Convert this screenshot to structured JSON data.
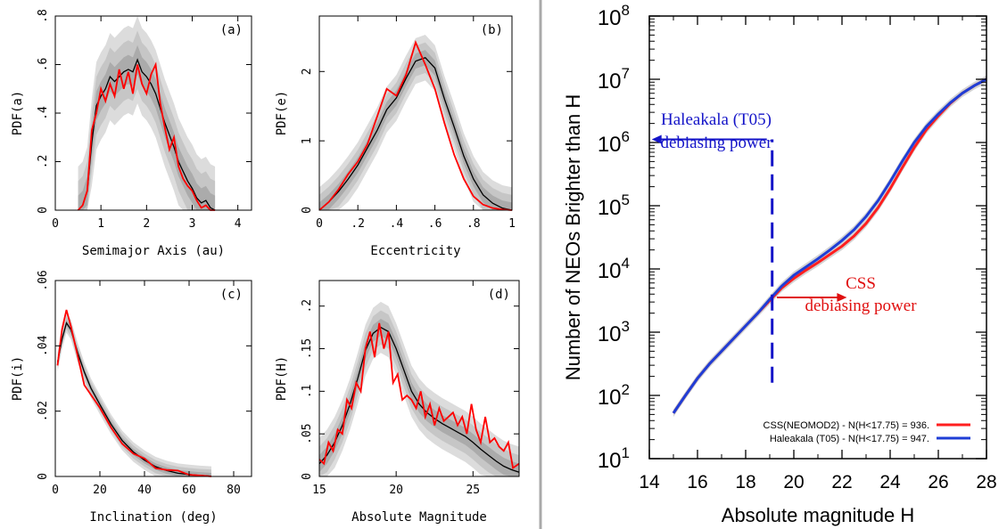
{
  "figure": {
    "divider_color": "#a9a9a9",
    "colors": {
      "model": "#000000",
      "observed": "#ff0000",
      "band_outer": "#dcdcdc",
      "band_mid": "#c6c6c6",
      "band_inner": "#ababab",
      "css": "#ff1f1f",
      "haleakala": "#1f3ed6",
      "annotation_blue": "#1414c8",
      "annotation_red": "#e01010"
    }
  },
  "chart_data": [
    {
      "type": "line",
      "panel": "(a)",
      "xlabel": "Semimajor Axis (au)",
      "ylabel": "PDF(a)",
      "xlim": [
        0,
        4.3
      ],
      "ylim": [
        0,
        0.8
      ],
      "xticks": [
        0,
        1,
        2,
        3,
        4
      ],
      "yticks": [
        0,
        0.2,
        0.4,
        0.6,
        0.8
      ],
      "grid": false,
      "series": [
        {
          "role": "model",
          "x": [
            0.5,
            0.6,
            0.7,
            0.8,
            0.9,
            1.0,
            1.1,
            1.2,
            1.3,
            1.4,
            1.5,
            1.6,
            1.7,
            1.8,
            1.9,
            2.0,
            2.1,
            2.2,
            2.3,
            2.4,
            2.5,
            2.6,
            2.7,
            2.8,
            2.9,
            3.0,
            3.1,
            3.2,
            3.3,
            3.4,
            3.5
          ],
          "y": [
            0,
            0.02,
            0.08,
            0.28,
            0.43,
            0.47,
            0.5,
            0.55,
            0.53,
            0.55,
            0.57,
            0.58,
            0.57,
            0.62,
            0.57,
            0.55,
            0.52,
            0.48,
            0.42,
            0.36,
            0.31,
            0.26,
            0.2,
            0.16,
            0.12,
            0.09,
            0.05,
            0.03,
            0.04,
            0.01,
            0
          ],
          "band_width": 0.12
        },
        {
          "role": "observed",
          "x": [
            0.5,
            0.6,
            0.7,
            0.8,
            0.9,
            1.0,
            1.1,
            1.2,
            1.3,
            1.4,
            1.5,
            1.6,
            1.7,
            1.8,
            1.9,
            2.0,
            2.1,
            2.2,
            2.3,
            2.4,
            2.5,
            2.6,
            2.7,
            2.8,
            2.9,
            3.0,
            3.1,
            3.2,
            3.3,
            3.4,
            3.5
          ],
          "y": [
            0,
            0.02,
            0.08,
            0.33,
            0.4,
            0.5,
            0.45,
            0.52,
            0.47,
            0.58,
            0.5,
            0.57,
            0.48,
            0.6,
            0.52,
            0.48,
            0.56,
            0.6,
            0.44,
            0.34,
            0.25,
            0.3,
            0.18,
            0.13,
            0.1,
            0.08,
            0.04,
            0.01,
            0.02,
            0,
            0
          ]
        }
      ]
    },
    {
      "type": "line",
      "panel": "(b)",
      "xlabel": "Eccentricity",
      "ylabel": "PDF(e)",
      "xlim": [
        0,
        1
      ],
      "ylim": [
        0,
        2.8
      ],
      "xticks": [
        0,
        0.2,
        0.4,
        0.6,
        0.8,
        1
      ],
      "yticks": [
        0,
        1,
        2
      ],
      "grid": false,
      "series": [
        {
          "role": "model",
          "x": [
            0,
            0.05,
            0.1,
            0.15,
            0.2,
            0.25,
            0.3,
            0.35,
            0.4,
            0.45,
            0.5,
            0.55,
            0.6,
            0.65,
            0.7,
            0.75,
            0.8,
            0.85,
            0.9,
            0.95,
            1.0
          ],
          "y": [
            0,
            0.12,
            0.27,
            0.45,
            0.65,
            0.9,
            1.15,
            1.45,
            1.62,
            1.9,
            2.15,
            2.2,
            2.05,
            1.6,
            1.2,
            0.78,
            0.45,
            0.22,
            0.1,
            0.03,
            0
          ],
          "band_width": 0.22
        },
        {
          "role": "observed",
          "x": [
            0,
            0.05,
            0.1,
            0.15,
            0.2,
            0.25,
            0.3,
            0.35,
            0.4,
            0.45,
            0.5,
            0.55,
            0.6,
            0.65,
            0.7,
            0.75,
            0.8,
            0.85,
            0.9,
            0.95,
            1.0
          ],
          "y": [
            0,
            0.12,
            0.3,
            0.52,
            0.7,
            0.95,
            1.35,
            1.75,
            1.65,
            1.95,
            2.42,
            2.1,
            1.75,
            1.25,
            0.8,
            0.45,
            0.2,
            0.08,
            0.03,
            0.01,
            0
          ]
        }
      ]
    },
    {
      "type": "line",
      "panel": "(c)",
      "xlabel": "Inclination (deg)",
      "ylabel": "PDF(i)",
      "xlim": [
        0,
        88
      ],
      "ylim": [
        0,
        0.06
      ],
      "xticks": [
        0,
        20,
        40,
        60,
        80
      ],
      "yticks": [
        0,
        0.02,
        0.04,
        0.06
      ],
      "grid": false,
      "series": [
        {
          "role": "model",
          "x": [
            1,
            3,
            5,
            7,
            10,
            13,
            16,
            20,
            25,
            30,
            35,
            40,
            45,
            50,
            55,
            60,
            65,
            70
          ],
          "y": [
            0.035,
            0.042,
            0.047,
            0.045,
            0.038,
            0.032,
            0.027,
            0.022,
            0.016,
            0.011,
            0.0075,
            0.005,
            0.003,
            0.0018,
            0.001,
            0.0006,
            0.0003,
            0.0001
          ],
          "band_width": 0.002
        },
        {
          "role": "observed",
          "x": [
            1,
            3,
            5,
            7,
            10,
            13,
            16,
            20,
            25,
            30,
            35,
            40,
            45,
            50,
            55,
            60,
            65,
            70
          ],
          "y": [
            0.034,
            0.045,
            0.051,
            0.046,
            0.037,
            0.028,
            0.025,
            0.021,
            0.015,
            0.01,
            0.007,
            0.0055,
            0.0025,
            0.002,
            0.0018,
            0.0005,
            0.0003,
            0
          ]
        }
      ]
    },
    {
      "type": "line",
      "panel": "(d)",
      "xlabel": "Absolute Magnitude",
      "ylabel": "PDF(H)",
      "xlim": [
        15,
        28
      ],
      "ylim": [
        0,
        0.23
      ],
      "xticks": [
        15,
        20,
        25
      ],
      "yticks": [
        0,
        0.05,
        0.1,
        0.15,
        0.2
      ],
      "grid": false,
      "series": [
        {
          "role": "model",
          "x": [
            15,
            15.5,
            16,
            16.5,
            17,
            17.5,
            18,
            18.5,
            19,
            19.5,
            20,
            20.5,
            21,
            21.5,
            22,
            22.5,
            23,
            23.5,
            24,
            24.5,
            25,
            25.5,
            26,
            26.5,
            27,
            27.5,
            28
          ],
          "y": [
            0.015,
            0.025,
            0.04,
            0.06,
            0.085,
            0.115,
            0.148,
            0.168,
            0.175,
            0.17,
            0.15,
            0.125,
            0.1,
            0.085,
            0.075,
            0.068,
            0.062,
            0.057,
            0.052,
            0.047,
            0.04,
            0.032,
            0.025,
            0.018,
            0.012,
            0.008,
            0.005
          ],
          "band_width": 0.02
        },
        {
          "role": "observed",
          "x": [
            15,
            15.3,
            15.6,
            15.9,
            16.2,
            16.5,
            16.8,
            17.1,
            17.4,
            17.7,
            18,
            18.3,
            18.6,
            18.9,
            19.2,
            19.5,
            19.8,
            20.1,
            20.4,
            20.7,
            21,
            21.3,
            21.6,
            21.9,
            22.2,
            22.5,
            22.8,
            23.1,
            23.4,
            23.7,
            24,
            24.3,
            24.6,
            24.9,
            25.2,
            25.5,
            25.8,
            26.1,
            26.4,
            26.7,
            27,
            27.3,
            27.6,
            28
          ],
          "y": [
            0.02,
            0.015,
            0.04,
            0.03,
            0.055,
            0.05,
            0.09,
            0.08,
            0.11,
            0.1,
            0.15,
            0.17,
            0.14,
            0.18,
            0.15,
            0.17,
            0.11,
            0.12,
            0.09,
            0.095,
            0.09,
            0.08,
            0.1,
            0.07,
            0.085,
            0.06,
            0.08,
            0.065,
            0.07,
            0.075,
            0.06,
            0.07,
            0.05,
            0.085,
            0.055,
            0.04,
            0.07,
            0.04,
            0.045,
            0.035,
            0.03,
            0.04,
            0.01,
            0.015
          ]
        }
      ]
    },
    {
      "type": "line",
      "ylabel": "Number of NEOs Brighter than H",
      "xlabel": "Absolute magnitude H",
      "xlim": [
        14,
        28
      ],
      "ylim_log10": [
        1,
        8
      ],
      "log_y": true,
      "xticks": [
        14,
        16,
        18,
        20,
        22,
        24,
        26,
        28
      ],
      "ytick_exponents": [
        1,
        2,
        3,
        4,
        5,
        6,
        7,
        8
      ],
      "ytick_base": "10",
      "grid": false,
      "legend_position": "bottom-right",
      "series": [
        {
          "name": "CSS(NEOMOD2) - N(H<17.75) = 936.",
          "x": [
            15,
            15.5,
            16,
            16.5,
            17,
            17.5,
            18,
            18.5,
            19,
            19.5,
            20,
            20.5,
            21,
            21.5,
            22,
            22.5,
            23,
            23.5,
            24,
            24.5,
            25,
            25.5,
            26,
            26.5,
            27,
            27.5,
            28
          ],
          "log10_y": [
            1.72,
            2.0,
            2.27,
            2.5,
            2.7,
            2.9,
            3.1,
            3.3,
            3.5,
            3.7,
            3.85,
            3.98,
            4.1,
            4.23,
            4.36,
            4.52,
            4.72,
            4.97,
            5.27,
            5.6,
            5.92,
            6.2,
            6.42,
            6.62,
            6.78,
            6.9,
            7.0
          ]
        },
        {
          "name": "Haleakala (T05) - N(H<17.75) = 947.",
          "x": [
            15,
            15.5,
            16,
            16.5,
            17,
            17.5,
            18,
            18.5,
            19,
            19.5,
            20,
            20.5,
            21,
            21.5,
            22,
            22.5,
            23,
            23.5,
            24,
            24.5,
            25,
            25.5,
            26,
            26.5,
            27,
            27.5,
            28
          ],
          "log10_y": [
            1.72,
            2.0,
            2.27,
            2.5,
            2.7,
            2.9,
            3.1,
            3.3,
            3.52,
            3.73,
            3.9,
            4.03,
            4.16,
            4.3,
            4.45,
            4.62,
            4.83,
            5.08,
            5.38,
            5.7,
            6.0,
            6.25,
            6.45,
            6.63,
            6.78,
            6.9,
            7.0
          ]
        }
      ],
      "annotations": [
        {
          "id": "haleakala",
          "lines": [
            "Haleakala (T05)",
            "debiasing power"
          ],
          "marker_x": 19.1,
          "marker_log10_range": [
            2.2,
            6.05
          ],
          "arrow_to_x": 14.1,
          "arrow_log10_y": 6.05
        },
        {
          "id": "css",
          "lines": [
            "CSS",
            "debiasing power"
          ],
          "arrow_from_x": 19.3,
          "arrow_to_x": 22.2,
          "arrow_log10_y": 3.55
        }
      ]
    }
  ]
}
